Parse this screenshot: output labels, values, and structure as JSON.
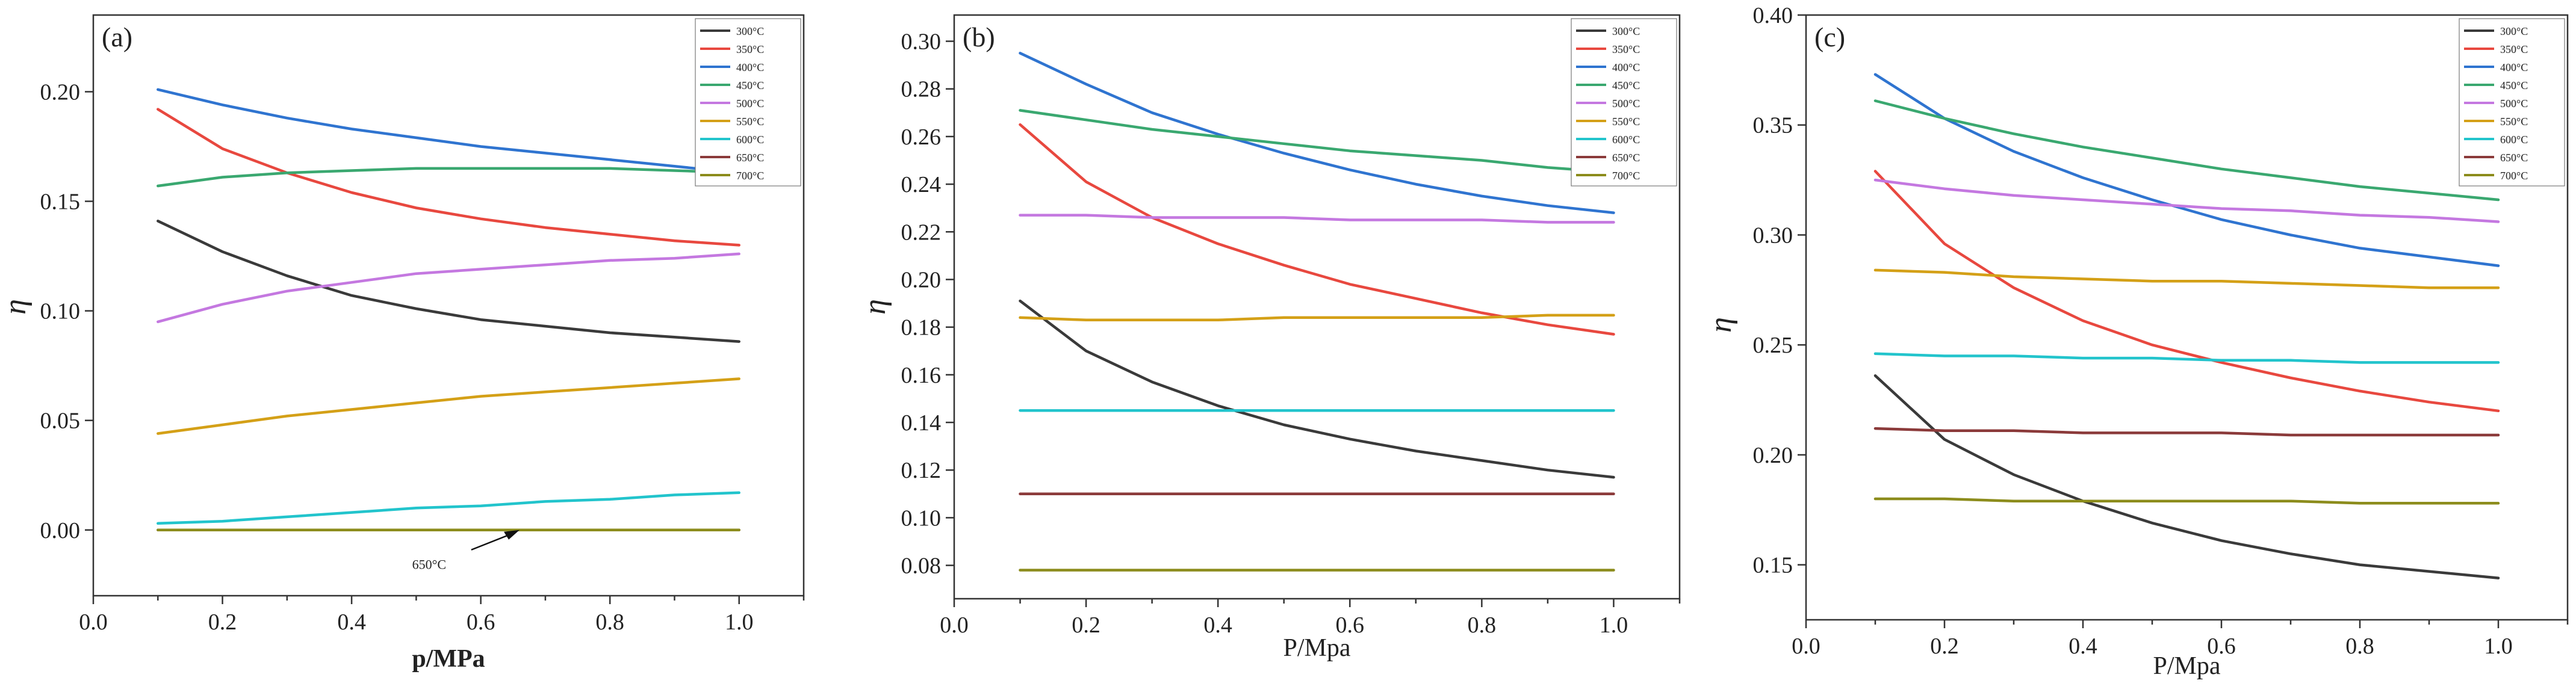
{
  "figure": {
    "panel_count": 3
  },
  "chart_data": [
    {
      "type": "line",
      "panel_label": "(a)",
      "xlabel": "p/MPa",
      "ylabel": "η",
      "xlim": [
        0.0,
        1.1
      ],
      "ylim": [
        -0.03,
        0.235
      ],
      "xticks": [
        "0.0",
        "0.2",
        "0.4",
        "0.6",
        "0.8",
        "1.0"
      ],
      "yticks": [
        "0.00",
        "0.05",
        "0.10",
        "0.15",
        "0.20"
      ],
      "legend": "top-right",
      "annotation": {
        "text": "650°C",
        "target_x": 0.66,
        "target_y": 0.0,
        "text_x": 0.52,
        "text_y": -0.014
      },
      "series": [
        {
          "name": "300°C",
          "color": "#3a3a3a",
          "x": [
            0.1,
            0.2,
            0.3,
            0.4,
            0.5,
            0.6,
            0.7,
            0.8,
            0.9,
            1.0
          ],
          "y": [
            0.141,
            0.127,
            0.116,
            0.107,
            0.101,
            0.096,
            0.093,
            0.09,
            0.088,
            0.086
          ]
        },
        {
          "name": "350°C",
          "color": "#e8483f",
          "x": [
            0.1,
            0.2,
            0.3,
            0.4,
            0.5,
            0.6,
            0.7,
            0.8,
            0.9,
            1.0
          ],
          "y": [
            0.192,
            0.174,
            0.163,
            0.154,
            0.147,
            0.142,
            0.138,
            0.135,
            0.132,
            0.13
          ]
        },
        {
          "name": "400°C",
          "color": "#2f74d0",
          "x": [
            0.1,
            0.2,
            0.3,
            0.4,
            0.5,
            0.6,
            0.7,
            0.8,
            0.9,
            1.0
          ],
          "y": [
            0.201,
            0.194,
            0.188,
            0.183,
            0.179,
            0.175,
            0.172,
            0.169,
            0.166,
            0.163
          ]
        },
        {
          "name": "450°C",
          "color": "#3aa870",
          "x": [
            0.1,
            0.2,
            0.3,
            0.4,
            0.5,
            0.6,
            0.7,
            0.8,
            0.9,
            1.0
          ],
          "y": [
            0.157,
            0.161,
            0.163,
            0.164,
            0.165,
            0.165,
            0.165,
            0.165,
            0.164,
            0.163
          ]
        },
        {
          "name": "500°C",
          "color": "#c478e0",
          "x": [
            0.1,
            0.2,
            0.3,
            0.4,
            0.5,
            0.6,
            0.7,
            0.8,
            0.9,
            1.0
          ],
          "y": [
            0.095,
            0.103,
            0.109,
            0.113,
            0.117,
            0.119,
            0.121,
            0.123,
            0.124,
            0.126
          ]
        },
        {
          "name": "550°C",
          "color": "#d4a017",
          "x": [
            0.1,
            0.2,
            0.3,
            0.4,
            0.5,
            0.6,
            0.7,
            0.8,
            0.9,
            1.0
          ],
          "y": [
            0.044,
            0.048,
            0.052,
            0.055,
            0.058,
            0.061,
            0.063,
            0.065,
            0.067,
            0.069
          ]
        },
        {
          "name": "600°C",
          "color": "#22c4cc",
          "x": [
            0.1,
            0.2,
            0.3,
            0.4,
            0.5,
            0.6,
            0.7,
            0.8,
            0.9,
            1.0
          ],
          "y": [
            0.003,
            0.004,
            0.006,
            0.008,
            0.01,
            0.011,
            0.013,
            0.014,
            0.016,
            0.017
          ]
        },
        {
          "name": "650°C",
          "color": "#8b3a3a",
          "x": [
            0.1,
            0.2,
            0.3,
            0.4,
            0.5,
            0.6,
            0.7,
            0.8,
            0.9,
            1.0
          ],
          "y": [
            0.0,
            0.0,
            0.0,
            0.0,
            0.0,
            0.0,
            0.0,
            0.0,
            0.0,
            0.0
          ]
        },
        {
          "name": "700°C",
          "color": "#8c8c1c",
          "x": [
            0.1,
            0.2,
            0.3,
            0.4,
            0.5,
            0.6,
            0.7,
            0.8,
            0.9,
            1.0
          ],
          "y": [
            0.0,
            0.0,
            0.0,
            0.0,
            0.0,
            0.0,
            0.0,
            0.0,
            0.0,
            0.0
          ]
        }
      ]
    },
    {
      "type": "line",
      "panel_label": "(b)",
      "xlabel": "P/Mpa",
      "ylabel": "η",
      "xlim": [
        0.0,
        1.1
      ],
      "ylim": [
        0.066,
        0.311
      ],
      "xticks": [
        "0.0",
        "0.2",
        "0.4",
        "0.6",
        "0.8",
        "1.0"
      ],
      "yticks": [
        "0.08",
        "0.10",
        "0.12",
        "0.14",
        "0.16",
        "0.18",
        "0.20",
        "0.22",
        "0.24",
        "0.26",
        "0.28",
        "0.30"
      ],
      "legend": "top-right",
      "series": [
        {
          "name": "300°C",
          "color": "#3a3a3a",
          "x": [
            0.1,
            0.2,
            0.3,
            0.4,
            0.5,
            0.6,
            0.7,
            0.8,
            0.9,
            1.0
          ],
          "y": [
            0.191,
            0.17,
            0.157,
            0.147,
            0.139,
            0.133,
            0.128,
            0.124,
            0.12,
            0.117
          ]
        },
        {
          "name": "350°C",
          "color": "#e8483f",
          "x": [
            0.1,
            0.2,
            0.3,
            0.4,
            0.5,
            0.6,
            0.7,
            0.8,
            0.9,
            1.0
          ],
          "y": [
            0.265,
            0.241,
            0.226,
            0.215,
            0.206,
            0.198,
            0.192,
            0.186,
            0.181,
            0.177
          ]
        },
        {
          "name": "400°C",
          "color": "#2f74d0",
          "x": [
            0.1,
            0.2,
            0.3,
            0.4,
            0.5,
            0.6,
            0.7,
            0.8,
            0.9,
            1.0
          ],
          "y": [
            0.295,
            0.282,
            0.27,
            0.261,
            0.253,
            0.246,
            0.24,
            0.235,
            0.231,
            0.228
          ]
        },
        {
          "name": "450°C",
          "color": "#3aa870",
          "x": [
            0.1,
            0.2,
            0.3,
            0.4,
            0.5,
            0.6,
            0.7,
            0.8,
            0.9,
            1.0
          ],
          "y": [
            0.271,
            0.267,
            0.263,
            0.26,
            0.257,
            0.254,
            0.252,
            0.25,
            0.247,
            0.245
          ]
        },
        {
          "name": "500°C",
          "color": "#c478e0",
          "x": [
            0.1,
            0.2,
            0.3,
            0.4,
            0.5,
            0.6,
            0.7,
            0.8,
            0.9,
            1.0
          ],
          "y": [
            0.227,
            0.227,
            0.226,
            0.226,
            0.226,
            0.225,
            0.225,
            0.225,
            0.224,
            0.224
          ]
        },
        {
          "name": "550°C",
          "color": "#d4a017",
          "x": [
            0.1,
            0.2,
            0.3,
            0.4,
            0.5,
            0.6,
            0.7,
            0.8,
            0.9,
            1.0
          ],
          "y": [
            0.184,
            0.183,
            0.183,
            0.183,
            0.184,
            0.184,
            0.184,
            0.184,
            0.185,
            0.185
          ]
        },
        {
          "name": "600°C",
          "color": "#22c4cc",
          "x": [
            0.1,
            0.2,
            0.3,
            0.4,
            0.5,
            0.6,
            0.7,
            0.8,
            0.9,
            1.0
          ],
          "y": [
            0.145,
            0.145,
            0.145,
            0.145,
            0.145,
            0.145,
            0.145,
            0.145,
            0.145,
            0.145
          ]
        },
        {
          "name": "650°C",
          "color": "#8b3a3a",
          "x": [
            0.1,
            0.2,
            0.3,
            0.4,
            0.5,
            0.6,
            0.7,
            0.8,
            0.9,
            1.0
          ],
          "y": [
            0.11,
            0.11,
            0.11,
            0.11,
            0.11,
            0.11,
            0.11,
            0.11,
            0.11,
            0.11
          ]
        },
        {
          "name": "700°C",
          "color": "#8c8c1c",
          "x": [
            0.1,
            0.2,
            0.3,
            0.4,
            0.5,
            0.6,
            0.7,
            0.8,
            0.9,
            1.0
          ],
          "y": [
            0.078,
            0.078,
            0.078,
            0.078,
            0.078,
            0.078,
            0.078,
            0.078,
            0.078,
            0.078
          ]
        }
      ]
    },
    {
      "type": "line",
      "panel_label": "(c)",
      "xlabel": "P/Mpa",
      "ylabel": "η",
      "xlim": [
        0.0,
        1.1
      ],
      "ylim": [
        0.125,
        0.4
      ],
      "xticks": [
        "0.0",
        "0.2",
        "0.4",
        "0.6",
        "0.8",
        "1.0"
      ],
      "yticks": [
        "0.15",
        "0.20",
        "0.25",
        "0.30",
        "0.35",
        "0.40"
      ],
      "legend": "top-right",
      "series": [
        {
          "name": "300°C",
          "color": "#3a3a3a",
          "x": [
            0.1,
            0.2,
            0.3,
            0.4,
            0.5,
            0.6,
            0.7,
            0.8,
            0.9,
            1.0
          ],
          "y": [
            0.236,
            0.207,
            0.191,
            0.179,
            0.169,
            0.161,
            0.155,
            0.15,
            0.147,
            0.144
          ]
        },
        {
          "name": "350°C",
          "color": "#e8483f",
          "x": [
            0.1,
            0.2,
            0.3,
            0.4,
            0.5,
            0.6,
            0.7,
            0.8,
            0.9,
            1.0
          ],
          "y": [
            0.329,
            0.296,
            0.276,
            0.261,
            0.25,
            0.242,
            0.235,
            0.229,
            0.224,
            0.22
          ]
        },
        {
          "name": "400°C",
          "color": "#2f74d0",
          "x": [
            0.1,
            0.2,
            0.3,
            0.4,
            0.5,
            0.6,
            0.7,
            0.8,
            0.9,
            1.0
          ],
          "y": [
            0.373,
            0.353,
            0.338,
            0.326,
            0.316,
            0.307,
            0.3,
            0.294,
            0.29,
            0.286
          ]
        },
        {
          "name": "450°C",
          "color": "#3aa870",
          "x": [
            0.1,
            0.2,
            0.3,
            0.4,
            0.5,
            0.6,
            0.7,
            0.8,
            0.9,
            1.0
          ],
          "y": [
            0.361,
            0.353,
            0.346,
            0.34,
            0.335,
            0.33,
            0.326,
            0.322,
            0.319,
            0.316
          ]
        },
        {
          "name": "500°C",
          "color": "#c478e0",
          "x": [
            0.1,
            0.2,
            0.3,
            0.4,
            0.5,
            0.6,
            0.7,
            0.8,
            0.9,
            1.0
          ],
          "y": [
            0.325,
            0.321,
            0.318,
            0.316,
            0.314,
            0.312,
            0.311,
            0.309,
            0.308,
            0.306
          ]
        },
        {
          "name": "550°C",
          "color": "#d4a017",
          "x": [
            0.1,
            0.2,
            0.3,
            0.4,
            0.5,
            0.6,
            0.7,
            0.8,
            0.9,
            1.0
          ],
          "y": [
            0.284,
            0.283,
            0.281,
            0.28,
            0.279,
            0.279,
            0.278,
            0.277,
            0.276,
            0.276
          ]
        },
        {
          "name": "600°C",
          "color": "#22c4cc",
          "x": [
            0.1,
            0.2,
            0.3,
            0.4,
            0.5,
            0.6,
            0.7,
            0.8,
            0.9,
            1.0
          ],
          "y": [
            0.246,
            0.245,
            0.245,
            0.244,
            0.244,
            0.243,
            0.243,
            0.242,
            0.242,
            0.242
          ]
        },
        {
          "name": "650°C",
          "color": "#8b3a3a",
          "x": [
            0.1,
            0.2,
            0.3,
            0.4,
            0.5,
            0.6,
            0.7,
            0.8,
            0.9,
            1.0
          ],
          "y": [
            0.212,
            0.211,
            0.211,
            0.21,
            0.21,
            0.21,
            0.209,
            0.209,
            0.209,
            0.209
          ]
        },
        {
          "name": "700°C",
          "color": "#8c8c1c",
          "x": [
            0.1,
            0.2,
            0.3,
            0.4,
            0.5,
            0.6,
            0.7,
            0.8,
            0.9,
            1.0
          ],
          "y": [
            0.18,
            0.18,
            0.179,
            0.179,
            0.179,
            0.179,
            0.179,
            0.178,
            0.178,
            0.178
          ]
        }
      ]
    }
  ]
}
